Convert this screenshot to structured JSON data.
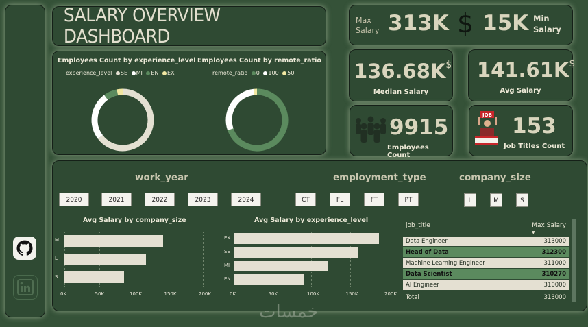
{
  "title": "SALARY OVERVIEW DASHBOARD",
  "kpis": {
    "max_label": "Max\nSalary",
    "max_value": "313K",
    "currency_symbol": "$",
    "min_value": "15K",
    "min_label": "Min\nSalary",
    "median_value": "136.68K",
    "median_symbol": "$",
    "median_label": "Median Salary",
    "avg_value": "141.61K",
    "avg_symbol": "$",
    "avg_label": "Avg Salary",
    "employees_value": "9915",
    "employees_label": "Employees Count",
    "jobs_value": "153",
    "jobs_label": "Job Titles Count",
    "job_sign": "JOB"
  },
  "donut1": {
    "title": "Employees Count by experience_level",
    "legend_title": "experience_level",
    "legend": [
      {
        "label": "SE",
        "color": "#e4e0d2"
      },
      {
        "label": "MI",
        "color": "#ffffff"
      },
      {
        "label": "EN",
        "color": "#5b8a5e"
      },
      {
        "label": "EX",
        "color": "#f1e7a2"
      }
    ]
  },
  "donut2": {
    "title": "Employees Count by remote_ratio",
    "legend_title": "remote_ratio",
    "legend": [
      {
        "label": "0",
        "color": "#5b8a5e"
      },
      {
        "label": "100",
        "color": "#ffffff"
      },
      {
        "label": "50",
        "color": "#f1e7a2"
      }
    ]
  },
  "slicers": {
    "work_year": {
      "label": "work_year",
      "options": [
        "2020",
        "2021",
        "2022",
        "2023",
        "2024"
      ]
    },
    "employment_type": {
      "label": "employment_type",
      "options": [
        "CT",
        "FL",
        "FT",
        "PT"
      ]
    },
    "company_size": {
      "label": "company_size",
      "options": [
        "L",
        "M",
        "S"
      ]
    }
  },
  "chart_data": [
    {
      "type": "pie",
      "title": "Employees Count by experience_level",
      "legend_title": "experience_level",
      "categories": [
        "SE",
        "MI",
        "EN",
        "EX"
      ],
      "values": [
        6400,
        2500,
        700,
        300
      ]
    },
    {
      "type": "pie",
      "title": "Employees Count by remote_ratio",
      "legend_title": "remote_ratio",
      "categories": [
        "0",
        "100",
        "50"
      ],
      "values": [
        6900,
        2850,
        170
      ]
    },
    {
      "type": "bar",
      "title": "Avg Salary by company_size",
      "categories": [
        "M",
        "L",
        "S"
      ],
      "values": [
        143000,
        118000,
        86000
      ],
      "xlim": [
        0,
        200000
      ],
      "ticks": [
        "0K",
        "50K",
        "100K",
        "150K",
        "200K"
      ]
    },
    {
      "type": "bar",
      "title": "Avg Salary by experience_level",
      "categories": [
        "EX",
        "SE",
        "MI",
        "EN"
      ],
      "values": [
        188000,
        160000,
        122000,
        90000
      ],
      "xlim": [
        0,
        200000
      ],
      "ticks": [
        "0K",
        "50K",
        "100K",
        "150K",
        "200K"
      ]
    },
    {
      "type": "table",
      "columns": [
        "job_title",
        "Max Salary"
      ],
      "rows": [
        [
          "Data Engineer",
          "313000"
        ],
        [
          "Head of Data",
          "312300"
        ],
        [
          "Machine Learning Engineer",
          "311000"
        ],
        [
          "Data Scientist",
          "310270"
        ],
        [
          "AI Engineer",
          "310000"
        ]
      ],
      "total": [
        "Total",
        "313000"
      ]
    }
  ],
  "watermark": "خمسات",
  "colors": {
    "background": "#355238",
    "panel": "#2f4a33",
    "accent_green": "#5b8a5e",
    "bar": "#e4e0d2",
    "text": "#d9d5bd"
  }
}
